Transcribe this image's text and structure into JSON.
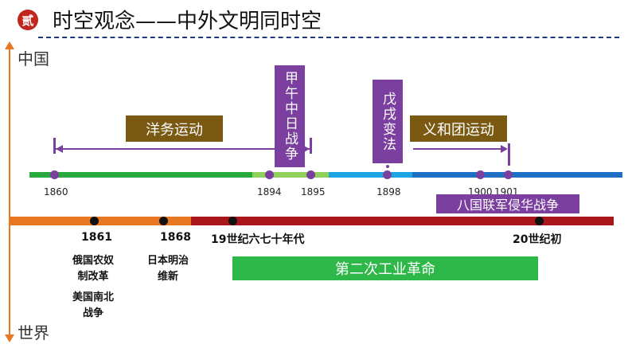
{
  "header": {
    "badge": "贰",
    "title": "时空观念——中外文明同时空"
  },
  "axis": {
    "china_label": "中国",
    "world_label": "世界"
  },
  "china_events": {
    "yangwu": "洋务运动",
    "jiawu": "甲午中日战争",
    "wuxu": "戊戌变法",
    "yihetuan": "义和团运动",
    "baguo": "八国联军侵华战争"
  },
  "china_years": [
    "1860",
    "1894",
    "1895",
    "1898",
    "1900",
    "1901"
  ],
  "world_years": [
    "1861",
    "1868",
    "19世纪六七十年代",
    "20世纪初"
  ],
  "world_events": {
    "russia": "俄国农奴制改革",
    "us": "美国南北战争",
    "japan": "日本明治维新",
    "industrial": "第二次工业革命"
  },
  "colors": {
    "badge": "#c0281e",
    "purple": "#7b3fa0",
    "brown_box": "#7a5a12",
    "green_box": "#2eb84a",
    "orange": "#e87722",
    "dark_red": "#a8161b",
    "blue": "#1f6fc5",
    "cyan": "#1ea5e6",
    "green": "#27a93c",
    "light_green": "#8fd15a"
  }
}
